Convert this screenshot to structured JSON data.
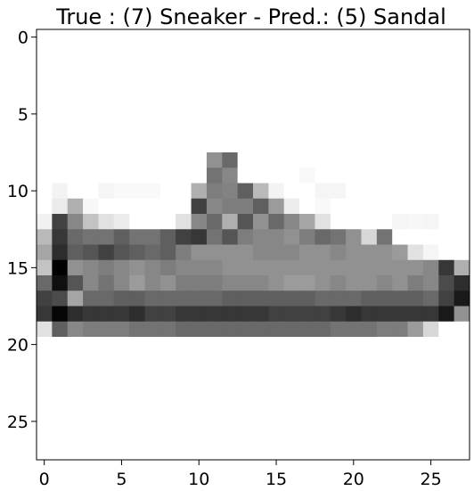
{
  "chart_data": {
    "type": "heatmap",
    "title": "True : (7) Sneaker - Pred.: (5) Sandal",
    "xlabel": "",
    "ylabel": "",
    "colormap": "gray_r",
    "value_range": [
      0,
      255
    ],
    "grid": false,
    "xlim": [
      -0.5,
      27.5
    ],
    "ylim": [
      27.5,
      -0.5
    ],
    "x_ticks": [
      0,
      5,
      10,
      15,
      20,
      25
    ],
    "y_ticks": [
      0,
      5,
      10,
      15,
      20,
      25
    ],
    "x_tick_labels": [
      "0",
      "5",
      "10",
      "15",
      "20",
      "25"
    ],
    "y_tick_labels": [
      "0",
      "5",
      "10",
      "15",
      "20",
      "25"
    ],
    "rows": 28,
    "cols": 28,
    "pixels": [
      [
        0,
        0,
        0,
        0,
        0,
        0,
        0,
        0,
        0,
        0,
        0,
        0,
        0,
        0,
        0,
        0,
        0,
        0,
        0,
        0,
        0,
        0,
        0,
        0,
        0,
        0,
        0,
        0
      ],
      [
        0,
        0,
        0,
        0,
        0,
        0,
        0,
        0,
        0,
        0,
        0,
        0,
        0,
        0,
        0,
        0,
        0,
        0,
        0,
        0,
        0,
        0,
        0,
        0,
        0,
        0,
        0,
        0
      ],
      [
        0,
        0,
        0,
        0,
        0,
        0,
        0,
        0,
        0,
        0,
        0,
        0,
        0,
        0,
        0,
        0,
        0,
        0,
        0,
        0,
        0,
        0,
        0,
        0,
        0,
        0,
        0,
        0
      ],
      [
        0,
        0,
        0,
        0,
        0,
        0,
        0,
        0,
        0,
        0,
        0,
        0,
        0,
        0,
        0,
        0,
        0,
        0,
        0,
        0,
        0,
        0,
        0,
        0,
        0,
        0,
        0,
        0
      ],
      [
        0,
        0,
        0,
        0,
        0,
        0,
        0,
        0,
        0,
        0,
        0,
        0,
        0,
        0,
        0,
        0,
        0,
        0,
        0,
        0,
        0,
        0,
        0,
        0,
        0,
        0,
        0,
        0
      ],
      [
        0,
        0,
        0,
        0,
        0,
        0,
        0,
        0,
        0,
        0,
        0,
        0,
        0,
        0,
        0,
        0,
        0,
        0,
        0,
        0,
        0,
        0,
        0,
        0,
        0,
        0,
        0,
        0
      ],
      [
        0,
        0,
        0,
        0,
        0,
        0,
        0,
        0,
        0,
        0,
        0,
        0,
        0,
        0,
        0,
        0,
        0,
        0,
        0,
        0,
        0,
        0,
        0,
        0,
        0,
        0,
        0,
        0
      ],
      [
        0,
        0,
        0,
        0,
        0,
        0,
        0,
        0,
        0,
        0,
        0,
        0,
        0,
        0,
        0,
        0,
        0,
        0,
        0,
        0,
        0,
        0,
        0,
        0,
        0,
        0,
        0,
        0
      ],
      [
        0,
        0,
        0,
        0,
        0,
        0,
        0,
        0,
        0,
        0,
        0,
        110,
        150,
        0,
        0,
        0,
        0,
        0,
        0,
        0,
        0,
        0,
        0,
        0,
        0,
        0,
        0,
        0
      ],
      [
        0,
        0,
        0,
        0,
        0,
        0,
        0,
        0,
        0,
        0,
        0,
        140,
        120,
        0,
        0,
        0,
        0,
        6,
        0,
        0,
        0,
        0,
        0,
        0,
        0,
        0,
        0,
        0
      ],
      [
        0,
        12,
        0,
        0,
        10,
        6,
        6,
        6,
        0,
        0,
        80,
        130,
        125,
        160,
        70,
        12,
        0,
        0,
        10,
        10,
        0,
        0,
        0,
        0,
        0,
        0,
        0,
        0
      ],
      [
        0,
        20,
        80,
        8,
        0,
        0,
        0,
        0,
        0,
        0,
        190,
        120,
        130,
        130,
        160,
        100,
        18,
        0,
        6,
        0,
        0,
        0,
        0,
        0,
        0,
        0,
        0,
        0
      ],
      [
        14,
        190,
        120,
        60,
        30,
        20,
        0,
        0,
        0,
        30,
        120,
        150,
        80,
        170,
        110,
        150,
        120,
        90,
        30,
        0,
        0,
        0,
        0,
        10,
        8,
        10,
        0,
        0
      ],
      [
        70,
        200,
        150,
        140,
        140,
        160,
        140,
        140,
        160,
        190,
        200,
        140,
        170,
        130,
        120,
        120,
        110,
        130,
        150,
        140,
        110,
        40,
        140,
        0,
        0,
        0,
        0,
        0
      ],
      [
        90,
        210,
        160,
        170,
        190,
        170,
        160,
        150,
        160,
        130,
        110,
        110,
        110,
        110,
        120,
        120,
        120,
        110,
        110,
        120,
        110,
        110,
        110,
        100,
        30,
        10,
        0,
        0
      ],
      [
        60,
        255,
        110,
        120,
        130,
        120,
        110,
        120,
        130,
        120,
        120,
        120,
        110,
        110,
        110,
        110,
        110,
        110,
        110,
        110,
        110,
        110,
        110,
        110,
        110,
        120,
        200,
        80
      ],
      [
        150,
        240,
        170,
        120,
        140,
        120,
        100,
        120,
        110,
        130,
        130,
        130,
        120,
        120,
        120,
        110,
        100,
        100,
        110,
        120,
        110,
        110,
        120,
        110,
        130,
        120,
        180,
        210
      ],
      [
        190,
        180,
        90,
        150,
        150,
        160,
        160,
        150,
        150,
        150,
        150,
        150,
        160,
        160,
        160,
        160,
        160,
        160,
        150,
        150,
        150,
        160,
        160,
        160,
        160,
        150,
        190,
        230
      ],
      [
        200,
        250,
        210,
        200,
        200,
        200,
        210,
        190,
        190,
        200,
        200,
        200,
        200,
        200,
        200,
        190,
        190,
        190,
        190,
        200,
        210,
        200,
        200,
        200,
        200,
        200,
        230,
        110
      ],
      [
        30,
        160,
        120,
        130,
        130,
        130,
        140,
        140,
        140,
        150,
        150,
        150,
        150,
        150,
        150,
        150,
        150,
        150,
        150,
        140,
        140,
        140,
        130,
        130,
        100,
        40,
        0,
        0
      ],
      [
        0,
        0,
        0,
        0,
        0,
        0,
        0,
        0,
        0,
        0,
        0,
        0,
        0,
        0,
        0,
        0,
        0,
        0,
        0,
        0,
        0,
        0,
        0,
        0,
        0,
        0,
        0,
        0
      ],
      [
        0,
        0,
        0,
        0,
        0,
        0,
        0,
        0,
        0,
        0,
        0,
        0,
        0,
        0,
        0,
        0,
        0,
        0,
        0,
        0,
        0,
        0,
        0,
        0,
        0,
        0,
        0,
        0
      ],
      [
        0,
        0,
        0,
        0,
        0,
        0,
        0,
        0,
        0,
        0,
        0,
        0,
        0,
        0,
        0,
        0,
        0,
        0,
        0,
        0,
        0,
        0,
        0,
        0,
        0,
        0,
        0,
        0
      ],
      [
        0,
        0,
        0,
        0,
        0,
        0,
        0,
        0,
        0,
        0,
        0,
        0,
        0,
        0,
        0,
        0,
        0,
        0,
        0,
        0,
        0,
        0,
        0,
        0,
        0,
        0,
        0,
        0
      ],
      [
        0,
        0,
        0,
        0,
        0,
        0,
        0,
        0,
        0,
        0,
        0,
        0,
        0,
        0,
        0,
        0,
        0,
        0,
        0,
        0,
        0,
        0,
        0,
        0,
        0,
        0,
        0,
        0
      ],
      [
        0,
        0,
        0,
        0,
        0,
        0,
        0,
        0,
        0,
        0,
        0,
        0,
        0,
        0,
        0,
        0,
        0,
        0,
        0,
        0,
        0,
        0,
        0,
        0,
        0,
        0,
        0,
        0
      ],
      [
        0,
        0,
        0,
        0,
        0,
        0,
        0,
        0,
        0,
        0,
        0,
        0,
        0,
        0,
        0,
        0,
        0,
        0,
        0,
        0,
        0,
        0,
        0,
        0,
        0,
        0,
        0,
        0
      ],
      [
        0,
        0,
        0,
        0,
        0,
        0,
        0,
        0,
        0,
        0,
        0,
        0,
        0,
        0,
        0,
        0,
        0,
        0,
        0,
        0,
        0,
        0,
        0,
        0,
        0,
        0,
        0,
        0
      ]
    ]
  }
}
